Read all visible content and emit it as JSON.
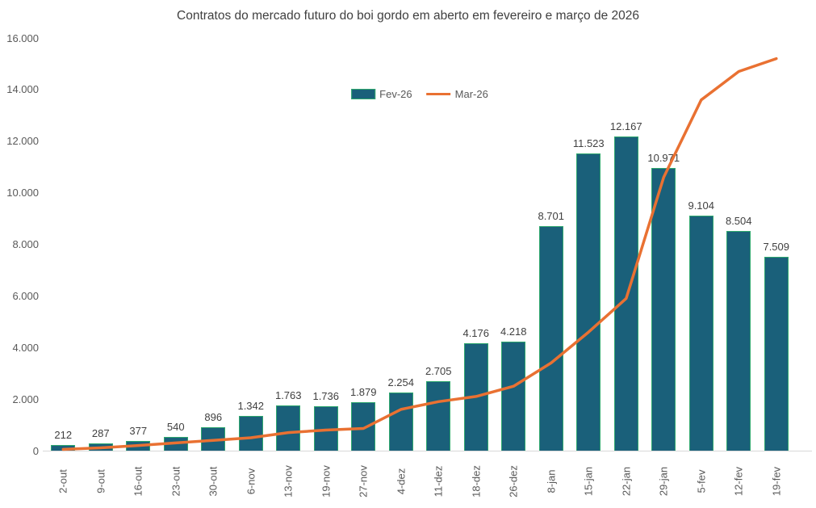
{
  "title": "Contratos do mercado futuro do boi gordo em aberto em fevereiro e março de 2026",
  "colors": {
    "bar_fill": "#1A607A",
    "bar_border": "#2FA86E",
    "line": "#E97132",
    "title_text": "#404040",
    "data_label_text": "#404040",
    "axis_text": "#595959",
    "axis_line": "#D9D9D9",
    "background": "#FFFFFF"
  },
  "chart_data": {
    "type": "combo",
    "categories": [
      "2-out",
      "9-out",
      "16-out",
      "23-out",
      "30-out",
      "6-nov",
      "13-nov",
      "19-nov",
      "27-nov",
      "4-dez",
      "11-dez",
      "18-dez",
      "26-dez",
      "8-jan",
      "15-jan",
      "22-jan",
      "29-jan",
      "5-fev",
      "12-fev",
      "19-fev"
    ],
    "series": [
      {
        "name": "Fev-26",
        "type": "bar",
        "values": [
          212,
          287,
          377,
          540,
          896,
          1342,
          1763,
          1736,
          1879,
          2254,
          2705,
          4176,
          4218,
          8701,
          11523,
          12167,
          10971,
          9104,
          8504,
          7509
        ],
        "data_labels": [
          "212",
          "287",
          "377",
          "540",
          "896",
          "1.342",
          "1.763",
          "1.736",
          "1.879",
          "2.254",
          "2.705",
          "4.176",
          "4.218",
          "8.701",
          "11.523",
          "12.167",
          "10.971",
          "9.104",
          "8.504",
          "7.509"
        ]
      },
      {
        "name": "Mar-26",
        "type": "line",
        "values_estimated": [
          50,
          110,
          200,
          300,
          400,
          500,
          700,
          800,
          860,
          1600,
          1900,
          2100,
          2500,
          3400,
          4600,
          5900,
          10600,
          13600,
          14700,
          15200
        ],
        "note": "line values estimated from plot; no data labels shown"
      }
    ],
    "xlabel": "",
    "ylabel": "",
    "ylim": [
      0,
      16000
    ],
    "yticks": {
      "values": [
        0,
        2000,
        4000,
        6000,
        8000,
        10000,
        12000,
        14000,
        16000
      ],
      "labels": [
        "0",
        "2.000",
        "4.000",
        "6.000",
        "8.000",
        "10.000",
        "12.000",
        "14.000",
        "16.000"
      ]
    },
    "grid": false,
    "legend_position": "top-center-inside",
    "x_tick_rotation": -90
  }
}
